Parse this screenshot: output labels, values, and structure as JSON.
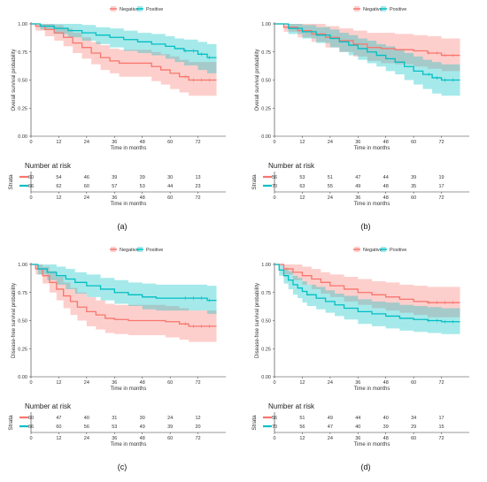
{
  "chart_data": [
    {
      "type": "line",
      "panel_label": "(a)",
      "ylabel": "Overall survival probability",
      "xlabel": "Time in months",
      "xlim": [
        0,
        84
      ],
      "ylim": [
        0,
        1
      ],
      "xticks": [
        "0",
        "12",
        "24",
        "36",
        "48",
        "60",
        "72"
      ],
      "yticks": [
        "0.00",
        "0.25",
        "0.50",
        "0.75",
        "1.00"
      ],
      "legend": {
        "position": "top",
        "entries": [
          "Negative",
          "Positive"
        ]
      },
      "series": [
        {
          "name": "Negative",
          "color": "#f8766d",
          "x": [
            0,
            2,
            6,
            10,
            14,
            18,
            22,
            26,
            30,
            34,
            38,
            46,
            52,
            56,
            60,
            64,
            68,
            80
          ],
          "y": [
            1.0,
            0.98,
            0.95,
            0.92,
            0.88,
            0.83,
            0.79,
            0.74,
            0.7,
            0.67,
            0.65,
            0.65,
            0.62,
            0.59,
            0.56,
            0.53,
            0.5,
            0.5
          ],
          "ci_upper": [
            1.0,
            1.0,
            1.0,
            0.99,
            0.96,
            0.92,
            0.88,
            0.84,
            0.81,
            0.78,
            0.77,
            0.77,
            0.75,
            0.73,
            0.71,
            0.68,
            0.66,
            0.66
          ],
          "ci_lower": [
            1.0,
            0.94,
            0.89,
            0.85,
            0.8,
            0.74,
            0.69,
            0.64,
            0.59,
            0.56,
            0.53,
            0.53,
            0.49,
            0.46,
            0.42,
            0.39,
            0.36,
            0.36
          ]
        },
        {
          "name": "Positive",
          "color": "#00bfc4",
          "x": [
            0,
            4,
            10,
            16,
            22,
            28,
            34,
            40,
            46,
            52,
            58,
            62,
            66,
            72,
            76,
            80
          ],
          "y": [
            1.0,
            0.98,
            0.96,
            0.94,
            0.92,
            0.9,
            0.88,
            0.86,
            0.84,
            0.82,
            0.8,
            0.78,
            0.76,
            0.73,
            0.7,
            0.7
          ],
          "ci_upper": [
            1.0,
            1.0,
            1.0,
            1.0,
            0.99,
            0.97,
            0.96,
            0.94,
            0.92,
            0.91,
            0.89,
            0.87,
            0.86,
            0.84,
            0.82,
            0.82
          ],
          "ci_lower": [
            1.0,
            0.95,
            0.91,
            0.88,
            0.85,
            0.82,
            0.79,
            0.76,
            0.74,
            0.72,
            0.69,
            0.66,
            0.63,
            0.59,
            0.56,
            0.56
          ]
        }
      ],
      "risk_table": {
        "title": "Number at risk",
        "ylabel": "Strata",
        "xlabel": "Time in months",
        "times": [
          "0",
          "12",
          "24",
          "36",
          "48",
          "60",
          "72"
        ],
        "rows": [
          {
            "color": "#f8766d",
            "values": [
              "60",
              "54",
              "46",
              "39",
              "39",
              "30",
              "13"
            ]
          },
          {
            "color": "#00bfc4",
            "values": [
              "66",
              "62",
              "60",
              "57",
              "53",
              "44",
              "23"
            ]
          }
        ]
      }
    },
    {
      "type": "line",
      "panel_label": "(b)",
      "ylabel": "Overall survival probability",
      "xlabel": "Time in months",
      "xlim": [
        0,
        84
      ],
      "ylim": [
        0,
        1
      ],
      "xticks": [
        "0",
        "12",
        "24",
        "36",
        "48",
        "60",
        "72"
      ],
      "yticks": [
        "0.00",
        "0.25",
        "0.50",
        "0.75",
        "1.00"
      ],
      "legend": {
        "position": "top",
        "entries": [
          "Negative",
          "Positive"
        ]
      },
      "series": [
        {
          "name": "Negative",
          "color": "#f8766d",
          "x": [
            0,
            4,
            10,
            16,
            22,
            28,
            34,
            40,
            46,
            52,
            60,
            66,
            72,
            80
          ],
          "y": [
            1.0,
            0.97,
            0.94,
            0.91,
            0.88,
            0.85,
            0.82,
            0.79,
            0.78,
            0.77,
            0.76,
            0.74,
            0.72,
            0.72
          ],
          "ci_upper": [
            1.0,
            1.0,
            1.0,
            1.0,
            0.98,
            0.96,
            0.94,
            0.92,
            0.92,
            0.91,
            0.9,
            0.89,
            0.87,
            0.87
          ],
          "ci_lower": [
            1.0,
            0.93,
            0.88,
            0.84,
            0.79,
            0.75,
            0.71,
            0.67,
            0.65,
            0.64,
            0.62,
            0.6,
            0.58,
            0.58
          ]
        },
        {
          "name": "Positive",
          "color": "#00bfc4",
          "x": [
            0,
            6,
            12,
            18,
            24,
            28,
            32,
            36,
            40,
            44,
            48,
            52,
            56,
            60,
            64,
            68,
            72,
            80
          ],
          "y": [
            1.0,
            0.96,
            0.93,
            0.9,
            0.87,
            0.84,
            0.81,
            0.78,
            0.75,
            0.72,
            0.69,
            0.66,
            0.62,
            0.58,
            0.55,
            0.52,
            0.5,
            0.5
          ],
          "ci_upper": [
            1.0,
            1.0,
            0.99,
            0.97,
            0.95,
            0.92,
            0.9,
            0.87,
            0.85,
            0.82,
            0.8,
            0.77,
            0.74,
            0.71,
            0.68,
            0.66,
            0.64,
            0.64
          ],
          "ci_lower": [
            1.0,
            0.91,
            0.87,
            0.83,
            0.79,
            0.75,
            0.72,
            0.68,
            0.65,
            0.62,
            0.58,
            0.55,
            0.5,
            0.46,
            0.42,
            0.38,
            0.36,
            0.36
          ]
        }
      ],
      "risk_table": {
        "title": "Number at risk",
        "ylabel": "Strata",
        "xlabel": "Time in months",
        "times": [
          "0",
          "12",
          "24",
          "36",
          "48",
          "60",
          "72"
        ],
        "rows": [
          {
            "color": "#f8766d",
            "values": [
              "56",
              "53",
              "51",
              "47",
              "44",
              "39",
              "19"
            ]
          },
          {
            "color": "#00bfc4",
            "values": [
              "70",
              "63",
              "55",
              "49",
              "48",
              "35",
              "17"
            ]
          }
        ]
      }
    },
    {
      "type": "line",
      "panel_label": "(c)",
      "ylabel": "Disease-free survival probability",
      "xlabel": "Time in months",
      "xlim": [
        0,
        84
      ],
      "ylim": [
        0,
        1
      ],
      "xticks": [
        "0",
        "12",
        "24",
        "36",
        "48",
        "60",
        "72"
      ],
      "yticks": [
        "0.00",
        "0.25",
        "0.50",
        "0.75",
        "1.00"
      ],
      "legend": {
        "position": "top",
        "entries": [
          "Negative",
          "Positive"
        ]
      },
      "series": [
        {
          "name": "Negative",
          "color": "#f8766d",
          "x": [
            0,
            2,
            5,
            8,
            11,
            14,
            17,
            20,
            24,
            28,
            32,
            36,
            42,
            50,
            58,
            64,
            68,
            80
          ],
          "y": [
            1.0,
            0.96,
            0.9,
            0.84,
            0.78,
            0.72,
            0.67,
            0.62,
            0.58,
            0.55,
            0.52,
            0.51,
            0.5,
            0.5,
            0.49,
            0.47,
            0.45,
            0.45
          ],
          "ci_upper": [
            1.0,
            1.0,
            0.98,
            0.94,
            0.89,
            0.84,
            0.79,
            0.75,
            0.71,
            0.68,
            0.65,
            0.64,
            0.64,
            0.64,
            0.63,
            0.61,
            0.59,
            0.59
          ],
          "ci_lower": [
            1.0,
            0.91,
            0.83,
            0.75,
            0.68,
            0.61,
            0.55,
            0.5,
            0.45,
            0.42,
            0.39,
            0.38,
            0.37,
            0.37,
            0.35,
            0.33,
            0.31,
            0.31
          ]
        },
        {
          "name": "Positive",
          "color": "#00bfc4",
          "x": [
            0,
            3,
            7,
            11,
            15,
            19,
            24,
            30,
            36,
            42,
            48,
            54,
            60,
            70,
            76,
            80
          ],
          "y": [
            1.0,
            0.96,
            0.93,
            0.9,
            0.87,
            0.84,
            0.81,
            0.78,
            0.75,
            0.73,
            0.71,
            0.7,
            0.7,
            0.7,
            0.68,
            0.68
          ],
          "ci_upper": [
            1.0,
            1.0,
            1.0,
            0.98,
            0.96,
            0.93,
            0.91,
            0.88,
            0.86,
            0.84,
            0.83,
            0.82,
            0.82,
            0.82,
            0.81,
            0.81
          ],
          "ci_lower": [
            1.0,
            0.91,
            0.86,
            0.82,
            0.78,
            0.74,
            0.71,
            0.68,
            0.65,
            0.63,
            0.6,
            0.59,
            0.59,
            0.59,
            0.56,
            0.56
          ]
        }
      ],
      "risk_table": {
        "title": "Number at risk",
        "ylabel": "Strata",
        "xlabel": "Time in months",
        "times": [
          "0",
          "12",
          "24",
          "36",
          "48",
          "60",
          "72"
        ],
        "rows": [
          {
            "color": "#f8766d",
            "values": [
              "60",
              "47",
              "40",
              "31",
              "30",
              "24",
              "12"
            ]
          },
          {
            "color": "#00bfc4",
            "values": [
              "66",
              "60",
              "56",
              "53",
              "49",
              "39",
              "20"
            ]
          }
        ]
      }
    },
    {
      "type": "line",
      "panel_label": "(d)",
      "ylabel": "Disease-free survival probability",
      "xlabel": "Time in months",
      "xlim": [
        0,
        84
      ],
      "ylim": [
        0,
        1
      ],
      "xticks": [
        "0",
        "12",
        "24",
        "36",
        "48",
        "60",
        "72"
      ],
      "yticks": [
        "0.00",
        "0.25",
        "0.50",
        "0.75",
        "1.00"
      ],
      "legend": {
        "position": "top",
        "entries": [
          "Negative",
          "Positive"
        ]
      },
      "series": [
        {
          "name": "Negative",
          "color": "#f8766d",
          "x": [
            0,
            4,
            8,
            12,
            16,
            20,
            24,
            30,
            36,
            42,
            48,
            54,
            60,
            66,
            72,
            80
          ],
          "y": [
            1.0,
            0.96,
            0.93,
            0.9,
            0.87,
            0.84,
            0.81,
            0.78,
            0.75,
            0.73,
            0.71,
            0.69,
            0.67,
            0.66,
            0.66,
            0.66
          ],
          "ci_upper": [
            1.0,
            1.0,
            1.0,
            0.98,
            0.96,
            0.93,
            0.91,
            0.89,
            0.87,
            0.85,
            0.84,
            0.82,
            0.81,
            0.8,
            0.8,
            0.8
          ],
          "ci_lower": [
            1.0,
            0.91,
            0.86,
            0.82,
            0.78,
            0.74,
            0.71,
            0.67,
            0.64,
            0.61,
            0.59,
            0.57,
            0.55,
            0.53,
            0.53,
            0.53
          ]
        },
        {
          "name": "Positive",
          "color": "#00bfc4",
          "x": [
            0,
            2,
            4,
            6,
            8,
            10,
            12,
            14,
            18,
            22,
            26,
            30,
            36,
            42,
            48,
            54,
            60,
            66,
            72,
            80
          ],
          "y": [
            1.0,
            0.95,
            0.9,
            0.86,
            0.82,
            0.79,
            0.76,
            0.73,
            0.7,
            0.67,
            0.64,
            0.61,
            0.58,
            0.56,
            0.54,
            0.52,
            0.51,
            0.5,
            0.49,
            0.49
          ],
          "ci_upper": [
            1.0,
            1.0,
            0.97,
            0.94,
            0.9,
            0.88,
            0.85,
            0.82,
            0.8,
            0.77,
            0.74,
            0.72,
            0.69,
            0.67,
            0.66,
            0.64,
            0.63,
            0.62,
            0.61,
            0.61
          ],
          "ci_lower": [
            1.0,
            0.9,
            0.83,
            0.78,
            0.73,
            0.7,
            0.66,
            0.63,
            0.6,
            0.57,
            0.54,
            0.51,
            0.47,
            0.45,
            0.43,
            0.41,
            0.4,
            0.39,
            0.38,
            0.38
          ]
        }
      ],
      "risk_table": {
        "title": "Number at risk",
        "ylabel": "Strata",
        "xlabel": "Time in months",
        "times": [
          "0",
          "12",
          "24",
          "36",
          "48",
          "60",
          "72"
        ],
        "rows": [
          {
            "color": "#f8766d",
            "values": [
              "56",
              "51",
              "49",
              "44",
              "40",
              "34",
              "17"
            ]
          },
          {
            "color": "#00bfc4",
            "values": [
              "70",
              "56",
              "47",
              "40",
              "39",
              "29",
              "15"
            ]
          }
        ]
      }
    }
  ]
}
